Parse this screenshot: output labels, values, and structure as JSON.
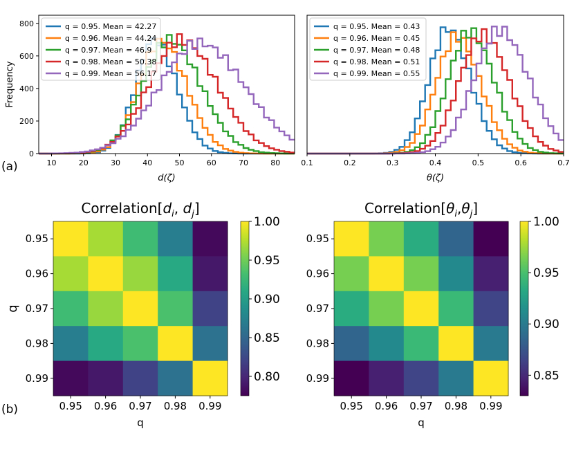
{
  "panel_labels": {
    "a": "(a)",
    "b": "(b)"
  },
  "chart_data": [
    {
      "type": "histogram",
      "panel": "(a) left",
      "xlabel": "d(ζ)",
      "ylabel": "Frequency",
      "xlim": [
        6,
        86
      ],
      "ylim": [
        0,
        850
      ],
      "xticks": [
        10,
        20,
        30,
        40,
        50,
        60,
        70,
        80
      ],
      "yticks": [
        0,
        200,
        400,
        600,
        800
      ],
      "legend_position": "top-left",
      "series": [
        {
          "name": "q = 0.95. Mean = 42.27",
          "q": 0.95,
          "mean": 42.27,
          "peak_frequency": 700,
          "sd": 6.0,
          "color": "#1f77b4"
        },
        {
          "name": "q = 0.96. Mean = 44.24",
          "q": 0.96,
          "mean": 44.24,
          "peak_frequency": 690,
          "sd": 7.0,
          "color": "#ff7f0e"
        },
        {
          "name": "q = 0.97. Mean = 46.9",
          "q": 0.97,
          "mean": 46.9,
          "peak_frequency": 700,
          "sd": 8.5,
          "color": "#2ca02c"
        },
        {
          "name": "q = 0.98. Mean = 50.38",
          "q": 0.98,
          "mean": 50.38,
          "peak_frequency": 700,
          "sd": 10.0,
          "color": "#d62728"
        },
        {
          "name": "q = 0.99. Mean = 56.17",
          "q": 0.99,
          "mean": 56.17,
          "peak_frequency": 680,
          "sd": 12.5,
          "color": "#9467bd"
        }
      ]
    },
    {
      "type": "histogram",
      "panel": "(a) right",
      "xlabel": "θ(ζ)",
      "ylabel": "",
      "xlim": [
        0.1,
        0.7
      ],
      "ylim": [
        0,
        850
      ],
      "xticks": [
        0.1,
        0.2,
        0.3,
        0.4,
        0.5,
        0.6,
        0.7
      ],
      "legend_position": "top-left",
      "series": [
        {
          "name": "q = 0.95. Mean = 0.43",
          "q": 0.95,
          "mean": 0.43,
          "peak_frequency": 770,
          "sd": 0.045,
          "color": "#1f77b4"
        },
        {
          "name": "q = 0.96. Mean = 0.45",
          "q": 0.96,
          "mean": 0.45,
          "peak_frequency": 720,
          "sd": 0.048,
          "color": "#ff7f0e"
        },
        {
          "name": "q = 0.97. Mean = 0.48",
          "q": 0.97,
          "mean": 0.48,
          "peak_frequency": 750,
          "sd": 0.05,
          "color": "#2ca02c"
        },
        {
          "name": "q = 0.98. Mean = 0.51",
          "q": 0.98,
          "mean": 0.51,
          "peak_frequency": 730,
          "sd": 0.055,
          "color": "#d62728"
        },
        {
          "name": "q = 0.99. Mean = 0.55",
          "q": 0.99,
          "mean": 0.55,
          "peak_frequency": 760,
          "sd": 0.06,
          "color": "#9467bd"
        }
      ]
    },
    {
      "type": "heatmap",
      "panel": "(b) left",
      "title": "Correlation[d_i, d_j]",
      "title_parts": {
        "prefix": "Correlation[",
        "sym1": "d",
        "sub1": "i",
        "sep": ", ",
        "sym2": "d",
        "sub2": "j",
        "suffix": "]"
      },
      "xlabel": "q",
      "ylabel": "q",
      "labels": [
        "0.95",
        "0.96",
        "0.97",
        "0.98",
        "0.99"
      ],
      "matrix": [
        [
          1.0,
          0.97,
          0.93,
          0.87,
          0.78
        ],
        [
          0.97,
          1.0,
          0.965,
          0.91,
          0.79
        ],
        [
          0.93,
          0.965,
          1.0,
          0.935,
          0.82
        ],
        [
          0.87,
          0.91,
          0.935,
          1.0,
          0.86
        ],
        [
          0.78,
          0.79,
          0.82,
          0.86,
          1.0
        ]
      ],
      "colorbar": {
        "min": 0.775,
        "max": 1.0,
        "ticks": [
          "1.00",
          "0.95",
          "0.90",
          "0.85",
          "0.80"
        ]
      }
    },
    {
      "type": "heatmap",
      "panel": "(b) right",
      "title": "Correlation[θ_i, θ_j]",
      "title_parts": {
        "prefix": "Correlation[",
        "sym1": "θ",
        "sub1": "i",
        "sep": ",",
        "sym2": "θ",
        "sub2": "j",
        "suffix": "]"
      },
      "xlabel": "q",
      "ylabel": "",
      "labels": [
        "0.95",
        "0.96",
        "0.97",
        "0.98",
        "0.99"
      ],
      "matrix": [
        [
          1.0,
          0.965,
          0.935,
          0.885,
          0.83
        ],
        [
          0.965,
          1.0,
          0.965,
          0.91,
          0.845
        ],
        [
          0.935,
          0.965,
          1.0,
          0.945,
          0.865
        ],
        [
          0.885,
          0.91,
          0.945,
          1.0,
          0.9
        ],
        [
          0.83,
          0.845,
          0.865,
          0.9,
          1.0
        ]
      ],
      "colorbar": {
        "min": 0.83,
        "max": 1.0,
        "ticks": [
          "1.00",
          "0.95",
          "0.90",
          "0.85"
        ]
      }
    }
  ]
}
